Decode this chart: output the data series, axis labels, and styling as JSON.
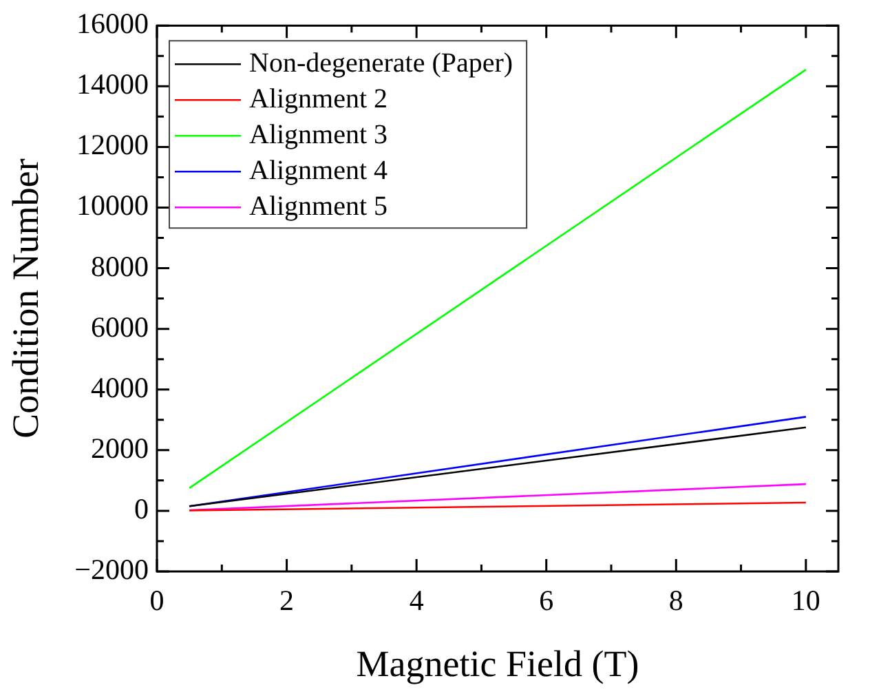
{
  "chart_data": {
    "type": "line",
    "xlabel": "Magnetic Field (T)",
    "ylabel": "Condition Number",
    "x": [
      0.5,
      10
    ],
    "series": [
      {
        "name": "Non-degenerate (Paper)",
        "color": "#000000",
        "values": [
          150,
          2750
        ]
      },
      {
        "name": "Alignment 2",
        "color": "#ff0000",
        "values": [
          10,
          270
        ]
      },
      {
        "name": "Alignment 3",
        "color": "#00ff00",
        "values": [
          750,
          14550
        ]
      },
      {
        "name": "Alignment 4",
        "color": "#0000ff",
        "values": [
          150,
          3100
        ]
      },
      {
        "name": "Alignment 5",
        "color": "#ff00ff",
        "values": [
          20,
          880
        ]
      }
    ],
    "xlim": [
      0,
      10.5
    ],
    "xticks": [
      0,
      {
        "value": 1,
        "label": null
      },
      2,
      {
        "value": 3,
        "label": null
      },
      4,
      {
        "value": 5,
        "label": null
      },
      6,
      {
        "value": 7,
        "label": null
      },
      8,
      {
        "value": 9,
        "label": null
      },
      10
    ],
    "ylim": [
      -2000,
      16000
    ],
    "yticks": [
      -2000,
      {
        "value": -1000,
        "label": null
      },
      0,
      {
        "value": 1000,
        "label": null
      },
      2000,
      {
        "value": 3000,
        "label": null
      },
      4000,
      {
        "value": 5000,
        "label": null
      },
      6000,
      {
        "value": 7000,
        "label": null
      },
      8000,
      {
        "value": 9000,
        "label": null
      },
      10000,
      {
        "value": 11000,
        "label": null
      },
      12000,
      {
        "value": 13000,
        "label": null
      },
      14000,
      {
        "value": 15000,
        "label": null
      },
      16000
    ],
    "grid": false,
    "legend": "top left",
    "marker": "none",
    "line_style": "solid"
  }
}
